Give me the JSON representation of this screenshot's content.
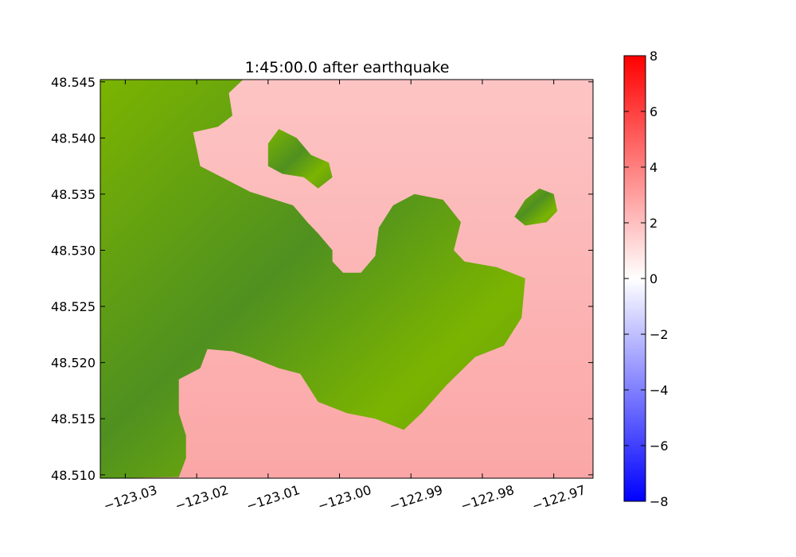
{
  "chart_data": {
    "type": "heatmap",
    "title": "1:45:00.0 after earthquake",
    "xlabel": "",
    "ylabel": "",
    "xlim": [
      -123.0335,
      -122.9645
    ],
    "ylim": [
      48.5097,
      48.5452
    ],
    "x_ticks": [
      -123.03,
      -123.02,
      -123.01,
      -123.0,
      -122.99,
      -122.98,
      -122.97
    ],
    "x_tick_labels": [
      "−123.03",
      "−123.02",
      "−123.01",
      "−123.00",
      "−122.99",
      "−122.98",
      "−122.97"
    ],
    "y_ticks": [
      48.51,
      48.515,
      48.52,
      48.525,
      48.53,
      48.535,
      48.54,
      48.545
    ],
    "y_tick_labels": [
      "48.510",
      "48.515",
      "48.520",
      "48.525",
      "48.530",
      "48.535",
      "48.540",
      "48.545"
    ],
    "colorbar": {
      "range": [
        -8,
        8
      ],
      "ticks": [
        8,
        6,
        4,
        2,
        0,
        -2,
        -4,
        -6,
        -8
      ],
      "tick_labels": [
        "8",
        "6",
        "4",
        "2",
        "0",
        "−2",
        "−4",
        "−6",
        "−8"
      ],
      "colormap": "bwr",
      "colors": {
        "low": "#0000ff",
        "mid": "#ffffff",
        "high": "#ff0000"
      }
    },
    "surface_value_approx": 2,
    "land_colors": {
      "dark": "#4f9020",
      "light": "#7bb400"
    },
    "land_regions": [
      {
        "name": "west-mainland",
        "outline": [
          [
            -123.0335,
            48.5452
          ],
          [
            -123.0135,
            48.5452
          ],
          [
            -123.0155,
            48.544
          ],
          [
            -123.015,
            48.542
          ],
          [
            -123.017,
            48.541
          ],
          [
            -123.0205,
            48.5405
          ],
          [
            -123.0195,
            48.5375
          ],
          [
            -123.0125,
            48.5352
          ],
          [
            -123.0065,
            48.534
          ],
          [
            -123.0045,
            48.5325
          ],
          [
            -123.003,
            48.5315
          ],
          [
            -123.001,
            48.53
          ],
          [
            -123.001,
            48.529
          ],
          [
            -122.9995,
            48.528
          ],
          [
            -122.997,
            48.528
          ],
          [
            -122.995,
            48.5295
          ],
          [
            -122.9945,
            48.532
          ],
          [
            -122.9925,
            48.534
          ],
          [
            -122.9895,
            48.535
          ],
          [
            -122.9855,
            48.5345
          ],
          [
            -122.983,
            48.5325
          ],
          [
            -122.984,
            48.53
          ],
          [
            -122.9825,
            48.529
          ],
          [
            -122.978,
            48.5285
          ],
          [
            -122.974,
            48.5275
          ],
          [
            -122.9745,
            48.524
          ],
          [
            -122.977,
            48.5215
          ],
          [
            -122.981,
            48.5205
          ],
          [
            -122.985,
            48.518
          ],
          [
            -122.9885,
            48.5155
          ],
          [
            -122.991,
            48.514
          ],
          [
            -122.995,
            48.515
          ],
          [
            -122.999,
            48.5155
          ],
          [
            -123.003,
            48.5165
          ],
          [
            -123.0055,
            48.519
          ],
          [
            -123.0085,
            48.5195
          ],
          [
            -123.0125,
            48.5205
          ],
          [
            -123.015,
            48.521
          ],
          [
            -123.0185,
            48.5212
          ],
          [
            -123.0195,
            48.5195
          ],
          [
            -123.0225,
            48.5185
          ],
          [
            -123.0225,
            48.5155
          ],
          [
            -123.0215,
            48.5135
          ],
          [
            -123.0215,
            48.5115
          ],
          [
            -123.0225,
            48.5098
          ],
          [
            -123.0335,
            48.5097
          ]
        ]
      },
      {
        "name": "north-islet",
        "outline": [
          [
            -123.0085,
            48.5408
          ],
          [
            -123.006,
            48.54
          ],
          [
            -123.004,
            48.5385
          ],
          [
            -123.0015,
            48.5378
          ],
          [
            -123.001,
            48.5365
          ],
          [
            -123.003,
            48.5355
          ],
          [
            -123.005,
            48.5365
          ],
          [
            -123.008,
            48.5368
          ],
          [
            -123.01,
            48.5375
          ],
          [
            -123.01,
            48.5395
          ]
        ]
      },
      {
        "name": "east-islet",
        "outline": [
          [
            -122.972,
            48.5355
          ],
          [
            -122.97,
            48.535
          ],
          [
            -122.9695,
            48.5335
          ],
          [
            -122.971,
            48.5325
          ],
          [
            -122.974,
            48.5322
          ],
          [
            -122.9755,
            48.533
          ],
          [
            -122.974,
            48.5345
          ]
        ]
      }
    ]
  }
}
